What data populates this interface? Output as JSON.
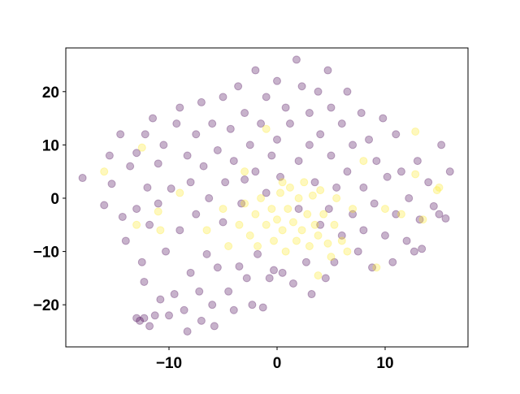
{
  "chart_data": {
    "type": "scatter",
    "xlim": [
      -19.55,
      17.67
    ],
    "ylim": [
      -27.9,
      28.2
    ],
    "xticks": [
      {
        "value": -10,
        "label": "−10"
      },
      0,
      10
    ],
    "yticks": [
      {
        "value": -20,
        "label": "−20"
      },
      {
        "value": -10,
        "label": "−10"
      },
      0,
      10,
      20
    ],
    "alpha": 0.3,
    "series": [
      {
        "color": "#440154",
        "x": [
          -18,
          -16,
          -15.5,
          -15.3,
          -14.5,
          -14.3,
          -14,
          -13.6,
          -13,
          -13,
          -12.5,
          -12.3,
          -12.2,
          -12,
          -11.8,
          -11.5,
          -11,
          -11,
          -10.8,
          -10.5,
          -10.3,
          -10,
          -9.8,
          -9.5,
          -9.3,
          -9,
          -9,
          -8.6,
          -8.3,
          -8.3,
          -8,
          -8,
          -7.5,
          -7.5,
          -7.2,
          -7,
          -7,
          -6.8,
          -6.5,
          -6.3,
          -6,
          -6,
          -5.8,
          -5.5,
          -5.5,
          -5,
          -5,
          -4.8,
          -4.5,
          -4.3,
          -4,
          -4,
          -3.6,
          -3.5,
          -3.3,
          -3,
          -3,
          -2.8,
          -2.5,
          -2.3,
          -2,
          -2,
          -1.8,
          -1.5,
          -1.3,
          -1,
          -1,
          -0.7,
          -0.5,
          -0.3,
          0,
          0,
          0.3,
          0.5,
          0.8,
          1.2,
          1.5,
          1.8,
          2,
          2,
          2.3,
          2.7,
          3,
          3,
          3.2,
          3.5,
          3.8,
          4,
          4,
          4.5,
          4.7,
          4.8,
          5,
          5,
          5.3,
          5.5,
          6,
          6,
          6.5,
          6.5,
          7,
          7,
          7.5,
          7.8,
          8,
          8,
          8.5,
          8.8,
          9,
          9.2,
          9.8,
          10,
          10.2,
          10.7,
          11,
          11,
          11.5,
          12,
          12.2,
          12.7,
          13,
          13.2,
          13.4,
          14,
          14.5,
          15,
          15.2,
          15.6,
          16,
          -12.7,
          -12.3,
          -11.8,
          -11.3,
          -13
        ],
        "values": [
          3.8,
          -1.3,
          8,
          2.7,
          12,
          -3.5,
          -8,
          6,
          8.5,
          -2,
          -12,
          -15.7,
          12,
          2,
          -5,
          15,
          6.5,
          -1,
          -19,
          10,
          -10,
          -22,
          1.8,
          -18,
          14,
          17,
          -6,
          -21,
          8,
          -25,
          3,
          -14,
          12,
          -3,
          -17.5,
          18,
          -23,
          6,
          -10.5,
          0,
          14,
          -20,
          -24,
          9,
          -13,
          19,
          -4.5,
          3,
          -17.5,
          13,
          -21,
          7,
          21,
          -12.8,
          -1,
          16,
          3.5,
          -15,
          10,
          -20,
          24,
          5,
          -10.5,
          14,
          -20.5,
          19,
          1,
          -15,
          8,
          -13.5,
          22,
          11,
          4,
          -14,
          17,
          14,
          -16,
          26,
          7,
          -2,
          21,
          -12,
          16,
          10,
          -18,
          3,
          20,
          -5,
          12,
          -15,
          24,
          -2,
          17,
          8,
          -12,
          2,
          14,
          -7,
          20,
          5,
          -3,
          10,
          -10,
          16,
          -6,
          2,
          11,
          -13,
          -1,
          7,
          15,
          -7,
          4,
          -12,
          -3,
          12,
          5,
          -8,
          0,
          -10,
          7,
          -4,
          -9.5,
          3,
          -1.5,
          -3,
          10,
          -3.8,
          5,
          -23,
          -22.5,
          -24,
          -22,
          -22.5
        ]
      },
      {
        "color": "#fde725",
        "x": [
          -16,
          -13,
          -12.5,
          -11,
          -10.8,
          -9,
          -6.5,
          -5,
          -4.5,
          -3.5,
          -3,
          -2.5,
          -2,
          -1.8,
          -1.5,
          -1,
          -0.5,
          -0.3,
          0,
          0.3,
          0.5,
          0.8,
          1,
          1.2,
          1.5,
          1.8,
          2,
          2.3,
          2.5,
          2.8,
          3,
          3.3,
          3.5,
          3.8,
          4,
          4.3,
          4.7,
          5,
          5.3,
          5.5,
          6,
          6.5,
          7,
          8,
          9.2,
          10,
          11.5,
          12.8,
          12.8,
          13.5,
          14.8,
          15,
          -3,
          -1,
          0.5,
          3.8
        ],
        "values": [
          5,
          -5,
          9.5,
          -2.5,
          -6,
          1,
          -6,
          -2,
          -9,
          -5,
          -1,
          -7,
          -3,
          -9,
          0,
          -5,
          -2,
          -8,
          -4,
          1,
          -6,
          -10,
          -2,
          2,
          -4.5,
          -8,
          0,
          -6,
          3,
          -3,
          -9,
          0.5,
          -5,
          -7,
          1.5,
          -3,
          -8.5,
          -11,
          -5,
          0,
          -8,
          -10,
          -2,
          7,
          -13,
          -2,
          -3,
          12.5,
          4.5,
          -4,
          1.5,
          2,
          5,
          13,
          3,
          -14.5
        ]
      }
    ]
  }
}
